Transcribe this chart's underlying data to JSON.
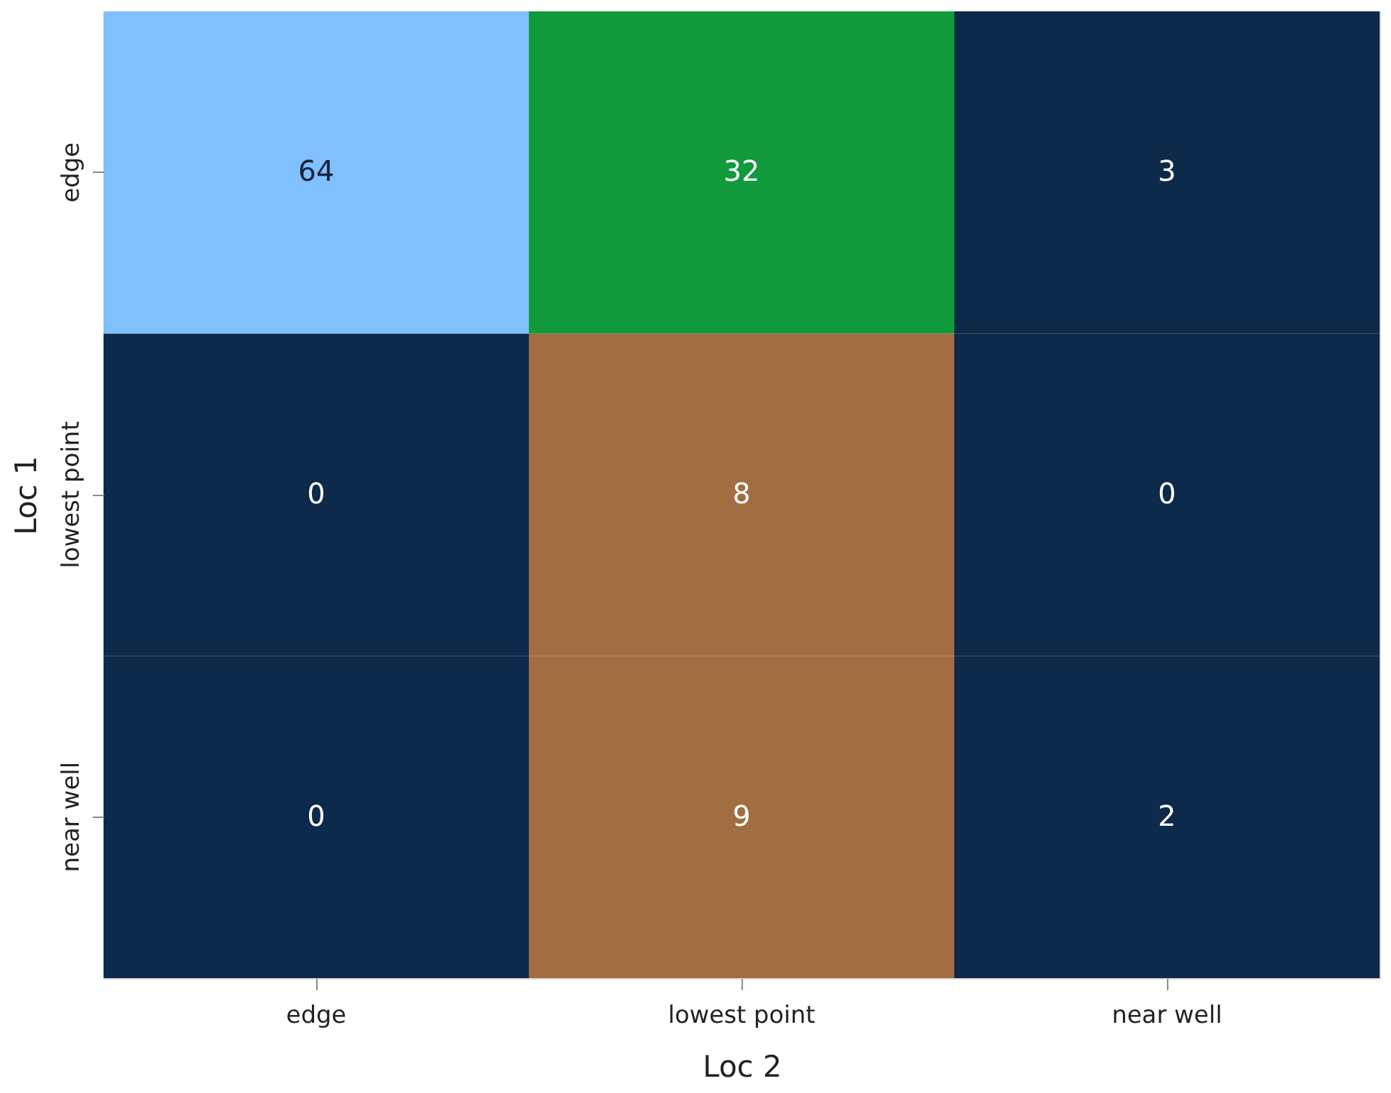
{
  "chart_data": {
    "type": "heatmap",
    "xlabel": "Loc 2",
    "ylabel": "Loc 1",
    "categories": [
      "edge",
      "lowest point",
      "near well"
    ],
    "y_categories": [
      "edge",
      "lowest point",
      "near well"
    ],
    "cells": [
      [
        64,
        32,
        3
      ],
      [
        0,
        8,
        0
      ],
      [
        0,
        9,
        2
      ]
    ],
    "colors": [
      "#80c0ff",
      "#119a3c",
      "#0e2a4a",
      "#0e2a4a",
      "#a36d42",
      "#0e2a4a",
      "#0e2a4a",
      "#a36d42",
      "#0e2a4a"
    ],
    "data_labels": true
  }
}
